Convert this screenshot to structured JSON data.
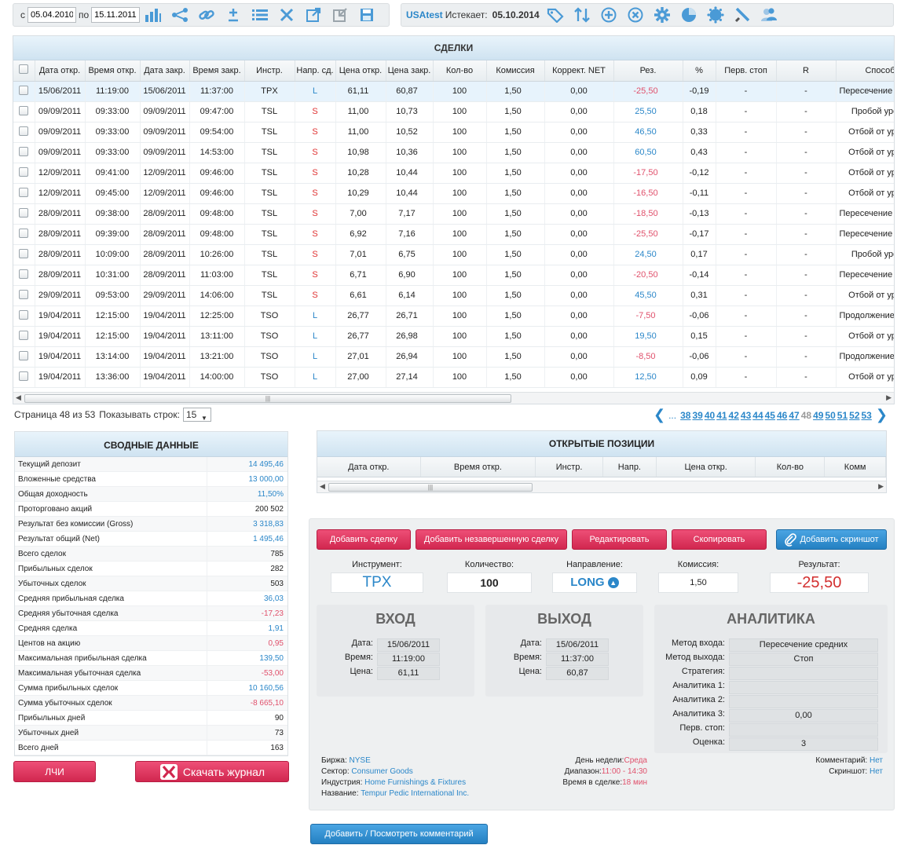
{
  "toolbar_left": {
    "from_label": "с",
    "from_date": "05.04.2010",
    "to_label": "по",
    "to_date": "15.11.2011"
  },
  "toolbar_right": {
    "user": "USAtest",
    "expires_label": "Истекает:",
    "expires_date": "05.10.2014"
  },
  "trades": {
    "title": "СДЕЛКИ",
    "columns": [
      "Дата откр.",
      "Время откр.",
      "Дата закр.",
      "Время закр.",
      "Инстр.",
      "Напр. сд.",
      "Цена откр.",
      "Цена закр.",
      "Кол-во",
      "Комиссия",
      "Коррект. NET",
      "Рез.",
      "%",
      "Перв. стоп",
      "R",
      "Способ"
    ],
    "rows": [
      [
        "15/06/2011",
        "11:19:00",
        "15/06/2011",
        "11:37:00",
        "TPX",
        "L",
        "61,11",
        "60,87",
        "100",
        "1,50",
        "0,00",
        "-25,50",
        "-0,19",
        "-",
        "-",
        "Пересечение средних"
      ],
      [
        "09/09/2011",
        "09:33:00",
        "09/09/2011",
        "09:47:00",
        "TSL",
        "S",
        "11,00",
        "10,73",
        "100",
        "1,50",
        "0,00",
        "25,50",
        "0,18",
        "-",
        "-",
        "Пробой уровня"
      ],
      [
        "09/09/2011",
        "09:33:00",
        "09/09/2011",
        "09:54:00",
        "TSL",
        "S",
        "11,00",
        "10,52",
        "100",
        "1,50",
        "0,00",
        "46,50",
        "0,33",
        "-",
        "-",
        "Отбой от уровня"
      ],
      [
        "09/09/2011",
        "09:33:00",
        "09/09/2011",
        "14:53:00",
        "TSL",
        "S",
        "10,98",
        "10,36",
        "100",
        "1,50",
        "0,00",
        "60,50",
        "0,43",
        "-",
        "-",
        "Отбой от уровня"
      ],
      [
        "12/09/2011",
        "09:41:00",
        "12/09/2011",
        "09:46:00",
        "TSL",
        "S",
        "10,28",
        "10,44",
        "100",
        "1,50",
        "0,00",
        "-17,50",
        "-0,12",
        "-",
        "-",
        "Отбой от уровня"
      ],
      [
        "12/09/2011",
        "09:45:00",
        "12/09/2011",
        "09:46:00",
        "TSL",
        "S",
        "10,29",
        "10,44",
        "100",
        "1,50",
        "0,00",
        "-16,50",
        "-0,11",
        "-",
        "-",
        "Отбой от уровня"
      ],
      [
        "28/09/2011",
        "09:38:00",
        "28/09/2011",
        "09:48:00",
        "TSL",
        "S",
        "7,00",
        "7,17",
        "100",
        "1,50",
        "0,00",
        "-18,50",
        "-0,13",
        "-",
        "-",
        "Пересечение средних"
      ],
      [
        "28/09/2011",
        "09:39:00",
        "28/09/2011",
        "09:48:00",
        "TSL",
        "S",
        "6,92",
        "7,16",
        "100",
        "1,50",
        "0,00",
        "-25,50",
        "-0,17",
        "-",
        "-",
        "Пересечение средних"
      ],
      [
        "28/09/2011",
        "10:09:00",
        "28/09/2011",
        "10:26:00",
        "TSL",
        "S",
        "7,01",
        "6,75",
        "100",
        "1,50",
        "0,00",
        "24,50",
        "0,17",
        "-",
        "-",
        "Пробой уровня"
      ],
      [
        "28/09/2011",
        "10:31:00",
        "28/09/2011",
        "11:03:00",
        "TSL",
        "S",
        "6,71",
        "6,90",
        "100",
        "1,50",
        "0,00",
        "-20,50",
        "-0,14",
        "-",
        "-",
        "Пересечение средних"
      ],
      [
        "29/09/2011",
        "09:53:00",
        "29/09/2011",
        "14:06:00",
        "TSL",
        "S",
        "6,61",
        "6,14",
        "100",
        "1,50",
        "0,00",
        "45,50",
        "0,31",
        "-",
        "-",
        "Отбой от уровня"
      ],
      [
        "19/04/2011",
        "12:15:00",
        "19/04/2011",
        "12:25:00",
        "TSO",
        "L",
        "26,77",
        "26,71",
        "100",
        "1,50",
        "0,00",
        "-7,50",
        "-0,06",
        "-",
        "-",
        "Продолжение движения"
      ],
      [
        "19/04/2011",
        "12:15:00",
        "19/04/2011",
        "13:11:00",
        "TSO",
        "L",
        "26,77",
        "26,98",
        "100",
        "1,50",
        "0,00",
        "19,50",
        "0,15",
        "-",
        "-",
        "Отбой от уровня"
      ],
      [
        "19/04/2011",
        "13:14:00",
        "19/04/2011",
        "13:21:00",
        "TSO",
        "L",
        "27,01",
        "26,94",
        "100",
        "1,50",
        "0,00",
        "-8,50",
        "-0,06",
        "-",
        "-",
        "Продолжение движения"
      ],
      [
        "19/04/2011",
        "13:36:00",
        "19/04/2011",
        "14:00:00",
        "TSO",
        "L",
        "27,00",
        "27,14",
        "100",
        "1,50",
        "0,00",
        "12,50",
        "0,09",
        "-",
        "-",
        "Отбой от уровня"
      ]
    ]
  },
  "pager": {
    "info": "Страница 48 из 53",
    "show_rows_label": "Показывать строк:",
    "rows_per_page": "15",
    "ellipsis": "...",
    "pages": [
      "38",
      "39",
      "40",
      "41",
      "42",
      "43",
      "44",
      "45",
      "46",
      "47",
      "48",
      "49",
      "50",
      "51",
      "52",
      "53"
    ],
    "current": "48"
  },
  "summary": {
    "title": "СВОДНЫЕ ДАННЫЕ",
    "rows": [
      {
        "label": "Текущий депозит",
        "value": "14 495,46",
        "tone": "pos"
      },
      {
        "label": "Вложенные средства",
        "value": "13 000,00",
        "tone": "pos"
      },
      {
        "label": "Общая доходность",
        "value": "11,50%",
        "tone": "pos"
      },
      {
        "label": "Проторговано акций",
        "value": "200 502",
        "tone": ""
      },
      {
        "label": "Результат без комиссии (Gross)",
        "value": "3 318,83",
        "tone": "pos"
      },
      {
        "label": "Результат общий (Net)",
        "value": "1 495,46",
        "tone": "pos"
      },
      {
        "label": "Всего сделок",
        "value": "785",
        "tone": ""
      },
      {
        "label": "Прибыльных сделок",
        "value": "282",
        "tone": ""
      },
      {
        "label": "Убыточных сделок",
        "value": "503",
        "tone": ""
      },
      {
        "label": "Средняя прибыльная сделка",
        "value": "36,03",
        "tone": "pos"
      },
      {
        "label": "Средняя убыточная сделка",
        "value": "-17,23",
        "tone": "neg"
      },
      {
        "label": "Средняя сделка",
        "value": "1,91",
        "tone": "pos"
      },
      {
        "label": "Центов на акцию",
        "value": "0,95",
        "tone": "neg"
      },
      {
        "label": "Максимальная прибыльная сделка",
        "value": "139,50",
        "tone": "pos"
      },
      {
        "label": "Максимальная убыточная сделка",
        "value": "-53,00",
        "tone": "neg"
      },
      {
        "label": "Сумма прибыльных сделок",
        "value": "10 160,56",
        "tone": "pos"
      },
      {
        "label": "Сумма убыточных сделок",
        "value": "-8 665,10",
        "tone": "neg"
      },
      {
        "label": "Прибыльных дней",
        "value": "90",
        "tone": ""
      },
      {
        "label": "Убыточных дней",
        "value": "73",
        "tone": ""
      },
      {
        "label": "Всего дней",
        "value": "163",
        "tone": ""
      }
    ],
    "lchi_button": "ЛЧИ",
    "download_button": "Скачать журнал"
  },
  "open_positions": {
    "title": "ОТКРЫТЫЕ ПОЗИЦИИ",
    "columns": [
      "Дата откр.",
      "Время откр.",
      "Инстр.",
      "Напр.",
      "Цена откр.",
      "Кол-во",
      "Комм"
    ]
  },
  "actions": {
    "add_trade": "Добавить сделку",
    "add_incomplete": "Добавить незавершенную сделку",
    "edit": "Редактировать",
    "copy": "Скопировать",
    "add_screenshot": "Добавить скриншот"
  },
  "trade_detail": {
    "instrument_label": "Инструмент:",
    "instrument": "TPX",
    "qty_label": "Количество:",
    "qty": "100",
    "direction_label": "Направление:",
    "direction": "LONG",
    "commission_label": "Комиссия:",
    "commission": "1,50",
    "result_label": "Результат:",
    "result": "-25,50",
    "entry": {
      "title": "ВХОД",
      "date_label": "Дата:",
      "date": "15/06/2011",
      "time_label": "Время:",
      "time": "11:19:00",
      "price_label": "Цена:",
      "price": "61,11"
    },
    "exit": {
      "title": "ВЫХОД",
      "date_label": "Дата:",
      "date": "15/06/2011",
      "time_label": "Время:",
      "time": "11:37:00",
      "price_label": "Цена:",
      "price": "60,87"
    },
    "analytics": {
      "title": "АНАЛИТИКА",
      "rows": [
        {
          "label": "Метод входа:",
          "value": "Пересечение средних"
        },
        {
          "label": "Метод выхода:",
          "value": "Стоп"
        },
        {
          "label": "Стратегия:",
          "value": ""
        },
        {
          "label": "Аналитика 1:",
          "value": ""
        },
        {
          "label": "Аналитика 2:",
          "value": ""
        },
        {
          "label": "Аналитика 3:",
          "value": "0,00"
        },
        {
          "label": "Перв. стоп:",
          "value": ""
        },
        {
          "label": "Оценка:",
          "value": "3"
        }
      ]
    },
    "exchange_label": "Биржа:",
    "exchange": "NYSE",
    "sector_label": "Сектор:",
    "sector": "Consumer Goods",
    "industry_label": "Индустрия:",
    "industry": "Home Furnishings & Fixtures",
    "name_label": "Название:",
    "name": "Tempur Pedic International Inc.",
    "weekday_label": "День недели:",
    "weekday": "Среда",
    "range_label": "Диапазон:",
    "range": "11:00 - 14:30",
    "duration_label": "Время в сделке:",
    "duration": "18 мин",
    "comment_label": "Комментарий:",
    "comment": "Нет",
    "screenshot_label": "Скриншот:",
    "screenshot": "Нет"
  },
  "comment_button": "Добавить / Посмотреть комментарий",
  "colors": {
    "accent": "#2b87c9",
    "danger": "#e0516c",
    "button_red": "#dc3560",
    "button_blue": "#3592d4"
  }
}
